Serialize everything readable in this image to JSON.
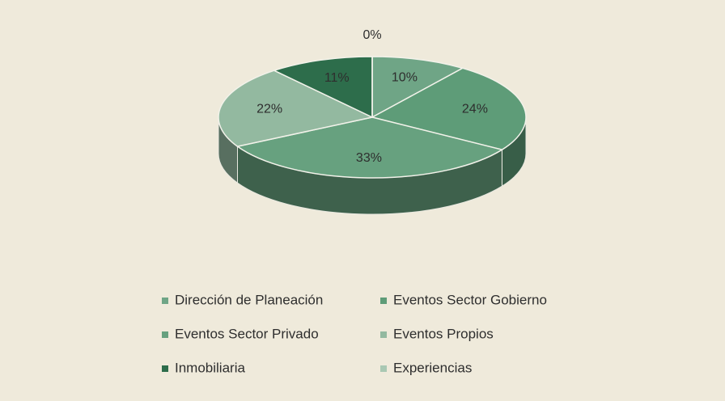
{
  "chart_data": {
    "type": "pie",
    "categories": [
      "Dirección de Planeación",
      "Eventos Sector Gobierno",
      "Eventos Sector Privado",
      "Eventos Propios",
      "Inmobiliaria",
      "Experiencias"
    ],
    "values": [
      10,
      24,
      33,
      22,
      11,
      0
    ],
    "value_labels": [
      "10%",
      "24%",
      "33%",
      "22%",
      "11%",
      "0%"
    ],
    "colors": [
      "#6fa586",
      "#5e9c78",
      "#67a17f",
      "#93b9a0",
      "#2d6d4b",
      "#a9c8b3"
    ],
    "legend": "bottom"
  }
}
